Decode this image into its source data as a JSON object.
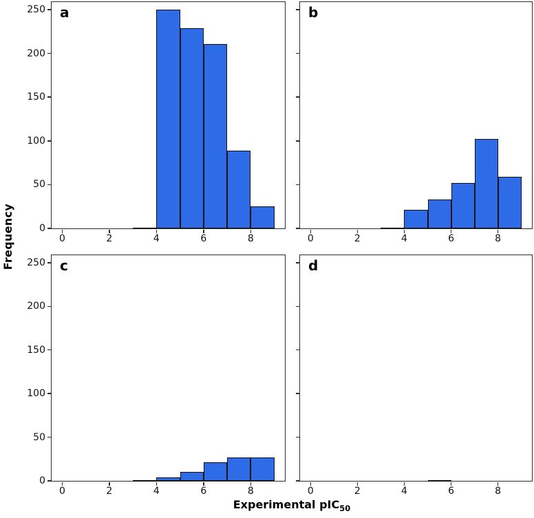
{
  "figure": {
    "background": "#ffffff",
    "ylabel": "Frequency",
    "xlabel": {
      "text": "Experimental pIC",
      "subscript": "50"
    },
    "panel_letters": [
      "a",
      "b",
      "c",
      "d"
    ]
  },
  "style": {
    "bar_fill": "#2d6ce6",
    "bar_edge": "#111111",
    "axis_color": "#2b2b2b"
  },
  "axes_config": {
    "xlim": [
      -0.45,
      9.45
    ],
    "ylim": [
      0,
      258.6
    ],
    "xticks": [
      0,
      2,
      4,
      6,
      8
    ],
    "yticks": [
      0,
      50,
      100,
      150,
      200,
      250
    ],
    "grid": false,
    "legend": "none"
  },
  "chart_data": [
    {
      "type": "bar",
      "title": "a",
      "xlabel": "Experimental pIC50",
      "ylabel": "Frequency",
      "xlim": [
        -0.45,
        9.45
      ],
      "ylim": [
        0,
        258.6
      ],
      "show_ytick_labels": true,
      "show_xtick_labels": true,
      "bin_edges": [
        3,
        4,
        5,
        6,
        7,
        8,
        9
      ],
      "values": [
        1,
        250,
        229,
        211,
        89,
        25
      ]
    },
    {
      "type": "bar",
      "title": "b",
      "xlabel": "Experimental pIC50",
      "ylabel": "Frequency",
      "xlim": [
        -0.45,
        9.45
      ],
      "ylim": [
        0,
        258.6
      ],
      "show_ytick_labels": false,
      "show_xtick_labels": true,
      "bin_edges": [
        3,
        4,
        5,
        6,
        7,
        8,
        9
      ],
      "values": [
        1,
        21,
        33,
        52,
        102,
        59
      ]
    },
    {
      "type": "bar",
      "title": "c",
      "xlabel": "Experimental pIC50",
      "ylabel": "Frequency",
      "xlim": [
        -0.45,
        9.45
      ],
      "ylim": [
        0,
        258.6
      ],
      "show_ytick_labels": true,
      "show_xtick_labels": true,
      "bin_edges": [
        3,
        4,
        5,
        6,
        7,
        8,
        9
      ],
      "values": [
        1,
        4,
        10,
        21,
        27,
        27
      ]
    },
    {
      "type": "bar",
      "title": "d",
      "xlabel": "Experimental pIC50",
      "ylabel": "Frequency",
      "xlim": [
        -0.45,
        9.45
      ],
      "ylim": [
        0,
        258.6
      ],
      "show_ytick_labels": false,
      "show_xtick_labels": true,
      "bin_edges": [
        5,
        6
      ],
      "values": [
        1
      ]
    }
  ]
}
